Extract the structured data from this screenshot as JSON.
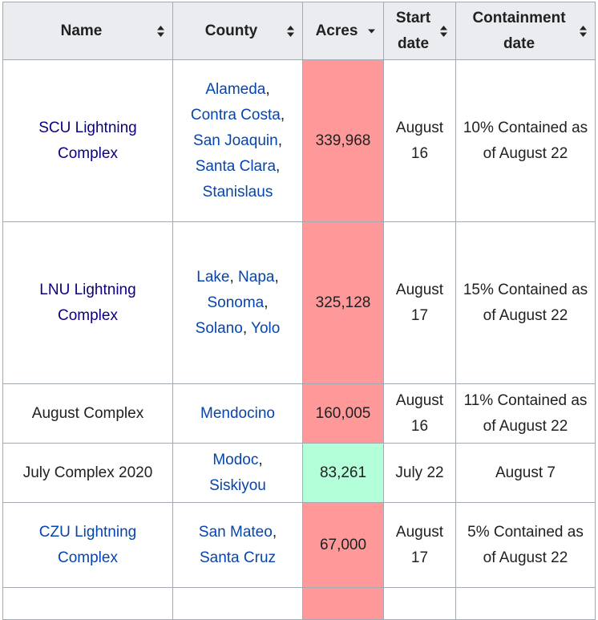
{
  "headers": {
    "name": "Name",
    "county": "County",
    "acres": "Acres",
    "start": "Start date",
    "containment": "Containment date"
  },
  "rows": [
    {
      "name": "SCU Lightning Complex",
      "counties": [
        "Alameda",
        "Contra Costa",
        "San Joaquin",
        "Santa Clara",
        "Stanislaus"
      ],
      "acres": "339,968",
      "start": "August 16",
      "containment": "10% Contained as of August 22"
    },
    {
      "name": "LNU Lightning Complex",
      "counties": [
        "Lake",
        "Napa",
        "Sonoma",
        "Solano",
        "Yolo"
      ],
      "acres": "325,128",
      "start": "August 17",
      "containment": "15% Contained as of August 22"
    },
    {
      "name": "August Complex",
      "counties": [
        "Mendocino"
      ],
      "acres": "160,005",
      "start": "August 16",
      "containment": "11% Contained as of August 22"
    },
    {
      "name": "July Complex 2020",
      "counties": [
        "Modoc",
        "Siskiyou"
      ],
      "acres": "83,261",
      "start": "July 22",
      "containment": "August 7"
    },
    {
      "name": "CZU Lightning Complex",
      "counties": [
        "San Mateo",
        "Santa Cruz"
      ],
      "acres": "67,000",
      "start": "August 17",
      "containment": "5% Contained as of August 22"
    }
  ],
  "colors": {
    "header_bg": "#eaecf0",
    "border": "#a2a9b1",
    "link": "#0645ad",
    "visited_link": "#0b0080",
    "acres_active": "#ff9999",
    "acres_contained": "#b3ffd9"
  },
  "icons": {
    "sort": "sort-both-icon",
    "sorted_desc": "sort-desc-icon"
  }
}
